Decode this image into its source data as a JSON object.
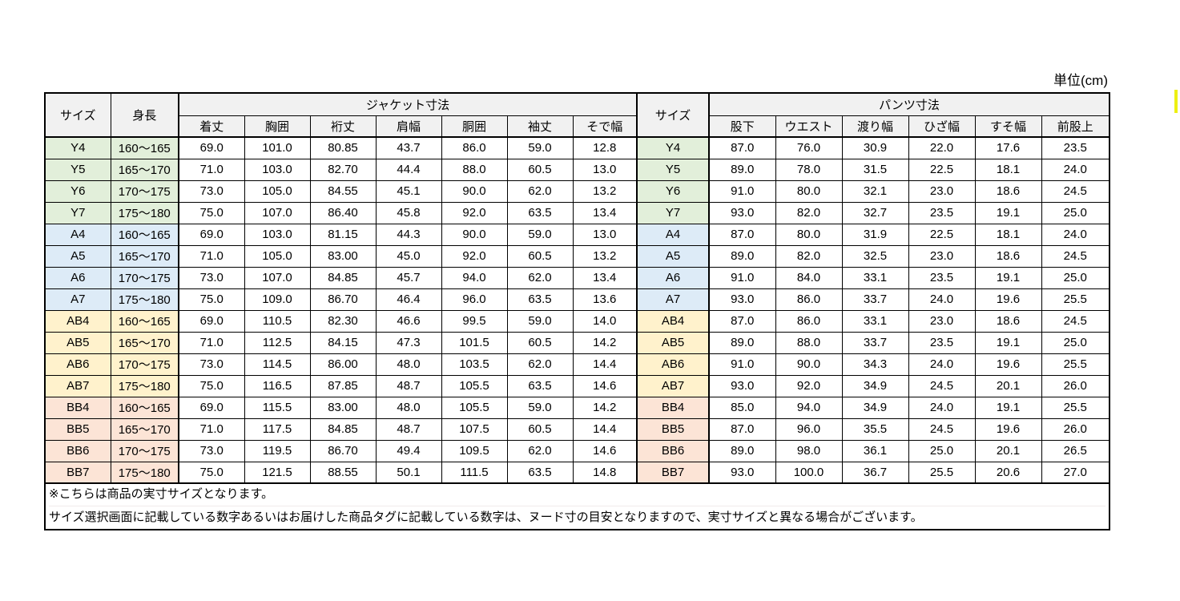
{
  "unit_label": "単位(cm)",
  "colors": {
    "header_bg": "#F1F1F1",
    "group_y": "#E2EFDA",
    "group_a": "#DDEBF7",
    "group_ab": "#FFF2CC",
    "group_bb": "#FCE4D6",
    "border": "#000000",
    "marker_yellow": "#EDF013"
  },
  "table": {
    "left_size_header": "サイズ",
    "height_header": "身長",
    "jacket_section_title": "ジャケット寸法",
    "jacket_columns": [
      "着丈",
      "胸囲",
      "裄丈",
      "肩幅",
      "胴囲",
      "袖丈",
      "そで幅"
    ],
    "right_size_header": "サイズ",
    "pants_section_title": "パンツ寸法",
    "pants_columns": [
      "股下",
      "ウエスト",
      "渡り幅",
      "ひざ幅",
      "すそ幅",
      "前股上"
    ],
    "rows": [
      {
        "size": "Y4",
        "group": "y",
        "height": "160～165",
        "jacket": [
          "69.0",
          "101.0",
          "80.85",
          "43.7",
          "86.0",
          "59.0",
          "12.8"
        ],
        "pants": [
          "87.0",
          "76.0",
          "30.9",
          "22.0",
          "17.6",
          "23.5"
        ]
      },
      {
        "size": "Y5",
        "group": "y",
        "height": "165～170",
        "jacket": [
          "71.0",
          "103.0",
          "82.70",
          "44.4",
          "88.0",
          "60.5",
          "13.0"
        ],
        "pants": [
          "89.0",
          "78.0",
          "31.5",
          "22.5",
          "18.1",
          "24.0"
        ]
      },
      {
        "size": "Y6",
        "group": "y",
        "height": "170～175",
        "jacket": [
          "73.0",
          "105.0",
          "84.55",
          "45.1",
          "90.0",
          "62.0",
          "13.2"
        ],
        "pants": [
          "91.0",
          "80.0",
          "32.1",
          "23.0",
          "18.6",
          "24.5"
        ]
      },
      {
        "size": "Y7",
        "group": "y",
        "height": "175～180",
        "jacket": [
          "75.0",
          "107.0",
          "86.40",
          "45.8",
          "92.0",
          "63.5",
          "13.4"
        ],
        "pants": [
          "93.0",
          "82.0",
          "32.7",
          "23.5",
          "19.1",
          "25.0"
        ]
      },
      {
        "size": "A4",
        "group": "a",
        "height": "160～165",
        "jacket": [
          "69.0",
          "103.0",
          "81.15",
          "44.3",
          "90.0",
          "59.0",
          "13.0"
        ],
        "pants": [
          "87.0",
          "80.0",
          "31.9",
          "22.5",
          "18.1",
          "24.0"
        ]
      },
      {
        "size": "A5",
        "group": "a",
        "height": "165～170",
        "jacket": [
          "71.0",
          "105.0",
          "83.00",
          "45.0",
          "92.0",
          "60.5",
          "13.2"
        ],
        "pants": [
          "89.0",
          "82.0",
          "32.5",
          "23.0",
          "18.6",
          "24.5"
        ]
      },
      {
        "size": "A6",
        "group": "a",
        "height": "170～175",
        "jacket": [
          "73.0",
          "107.0",
          "84.85",
          "45.7",
          "94.0",
          "62.0",
          "13.4"
        ],
        "pants": [
          "91.0",
          "84.0",
          "33.1",
          "23.5",
          "19.1",
          "25.0"
        ]
      },
      {
        "size": "A7",
        "group": "a",
        "height": "175～180",
        "jacket": [
          "75.0",
          "109.0",
          "86.70",
          "46.4",
          "96.0",
          "63.5",
          "13.6"
        ],
        "pants": [
          "93.0",
          "86.0",
          "33.7",
          "24.0",
          "19.6",
          "25.5"
        ]
      },
      {
        "size": "AB4",
        "group": "ab",
        "height": "160～165",
        "jacket": [
          "69.0",
          "110.5",
          "82.30",
          "46.6",
          "99.5",
          "59.0",
          "14.0"
        ],
        "pants": [
          "87.0",
          "86.0",
          "33.1",
          "23.0",
          "18.6",
          "24.5"
        ]
      },
      {
        "size": "AB5",
        "group": "ab",
        "height": "165～170",
        "jacket": [
          "71.0",
          "112.5",
          "84.15",
          "47.3",
          "101.5",
          "60.5",
          "14.2"
        ],
        "pants": [
          "89.0",
          "88.0",
          "33.7",
          "23.5",
          "19.1",
          "25.0"
        ]
      },
      {
        "size": "AB6",
        "group": "ab",
        "height": "170～175",
        "jacket": [
          "73.0",
          "114.5",
          "86.00",
          "48.0",
          "103.5",
          "62.0",
          "14.4"
        ],
        "pants": [
          "91.0",
          "90.0",
          "34.3",
          "24.0",
          "19.6",
          "25.5"
        ]
      },
      {
        "size": "AB7",
        "group": "ab",
        "height": "175～180",
        "jacket": [
          "75.0",
          "116.5",
          "87.85",
          "48.7",
          "105.5",
          "63.5",
          "14.6"
        ],
        "pants": [
          "93.0",
          "92.0",
          "34.9",
          "24.5",
          "20.1",
          "26.0"
        ]
      },
      {
        "size": "BB4",
        "group": "bb",
        "height": "160～165",
        "jacket": [
          "69.0",
          "115.5",
          "83.00",
          "48.0",
          "105.5",
          "59.0",
          "14.2"
        ],
        "pants": [
          "85.0",
          "94.0",
          "34.9",
          "24.0",
          "19.1",
          "25.5"
        ]
      },
      {
        "size": "BB5",
        "group": "bb",
        "height": "165～170",
        "jacket": [
          "71.0",
          "117.5",
          "84.85",
          "48.7",
          "107.5",
          "60.5",
          "14.4"
        ],
        "pants": [
          "87.0",
          "96.0",
          "35.5",
          "24.5",
          "19.6",
          "26.0"
        ]
      },
      {
        "size": "BB6",
        "group": "bb",
        "height": "170～175",
        "jacket": [
          "73.0",
          "119.5",
          "86.70",
          "49.4",
          "109.5",
          "62.0",
          "14.6"
        ],
        "pants": [
          "89.0",
          "98.0",
          "36.1",
          "25.0",
          "20.1",
          "26.5"
        ]
      },
      {
        "size": "BB7",
        "group": "bb",
        "height": "175～180",
        "jacket": [
          "75.0",
          "121.5",
          "88.55",
          "50.1",
          "111.5",
          "63.5",
          "14.8"
        ],
        "pants": [
          "93.0",
          "100.0",
          "36.7",
          "25.5",
          "20.6",
          "27.0"
        ]
      }
    ]
  },
  "notes": [
    "※こちらは商品の実寸サイズとなります。",
    "サイズ選択画面に記載している数字あるいはお届けした商品タグに記載している数字は、ヌード寸の目安となりますので、実寸サイズと異なる場合がございます。"
  ]
}
